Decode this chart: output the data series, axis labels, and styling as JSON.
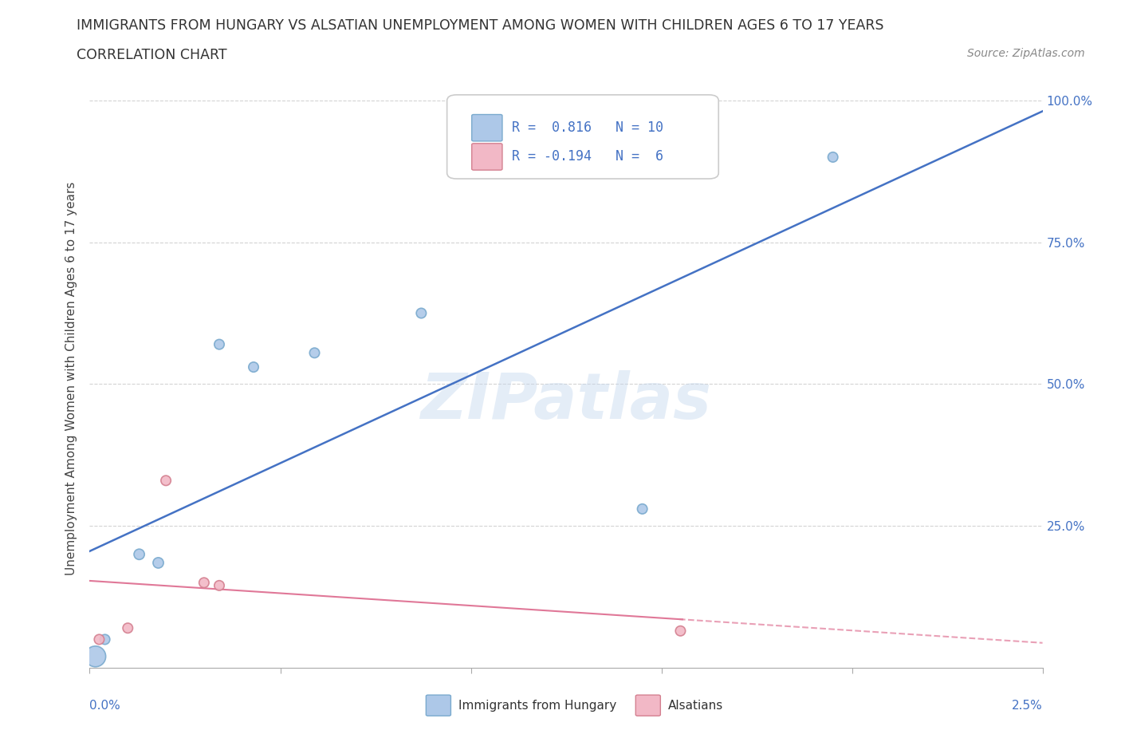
{
  "title_line1": "IMMIGRANTS FROM HUNGARY VS ALSATIAN UNEMPLOYMENT AMONG WOMEN WITH CHILDREN AGES 6 TO 17 YEARS",
  "title_line2": "CORRELATION CHART",
  "source_text": "Source: ZipAtlas.com",
  "ylabel": "Unemployment Among Women with Children Ages 6 to 17 years",
  "blue_label": "Immigrants from Hungary",
  "pink_label": "Alsatians",
  "blue_R": "0.816",
  "blue_N": "10",
  "pink_R": "-0.194",
  "pink_N": "6",
  "blue_x": [
    0.00015,
    0.0004,
    0.0013,
    0.0018,
    0.0034,
    0.0043,
    0.0059,
    0.0087,
    0.0145,
    0.0195
  ],
  "blue_y": [
    0.02,
    0.05,
    0.2,
    0.185,
    0.57,
    0.53,
    0.555,
    0.625,
    0.28,
    0.9
  ],
  "blue_size": [
    350,
    80,
    90,
    90,
    80,
    80,
    80,
    80,
    80,
    80
  ],
  "pink_x": [
    0.00025,
    0.001,
    0.002,
    0.003,
    0.0034,
    0.0155
  ],
  "pink_y": [
    0.05,
    0.07,
    0.33,
    0.15,
    0.145,
    0.065
  ],
  "pink_size": [
    80,
    80,
    80,
    80,
    80,
    80
  ],
  "xlim": [
    0,
    0.025
  ],
  "ylim": [
    0,
    1.02
  ],
  "yticks_right": [
    0.25,
    0.5,
    0.75,
    1.0
  ],
  "ytick_labels_right": [
    "25.0%",
    "50.0%",
    "75.0%",
    "100.0%"
  ],
  "xtick_labels_bottom": [
    "0.0%",
    "",
    "",
    "",
    "",
    "2.5%"
  ],
  "blue_color": "#adc8e8",
  "blue_edge": "#7aaace",
  "blue_line_color": "#4472c4",
  "pink_color": "#f2b8c6",
  "pink_edge": "#d48090",
  "pink_line_color": "#e07898",
  "bg_color": "#ffffff",
  "grid_color": "#c8c8c8",
  "watermark": "ZIPatlas",
  "legend_blue_text": "R =  0.816   N = 10",
  "legend_pink_text": "R = -0.194   N =  6"
}
